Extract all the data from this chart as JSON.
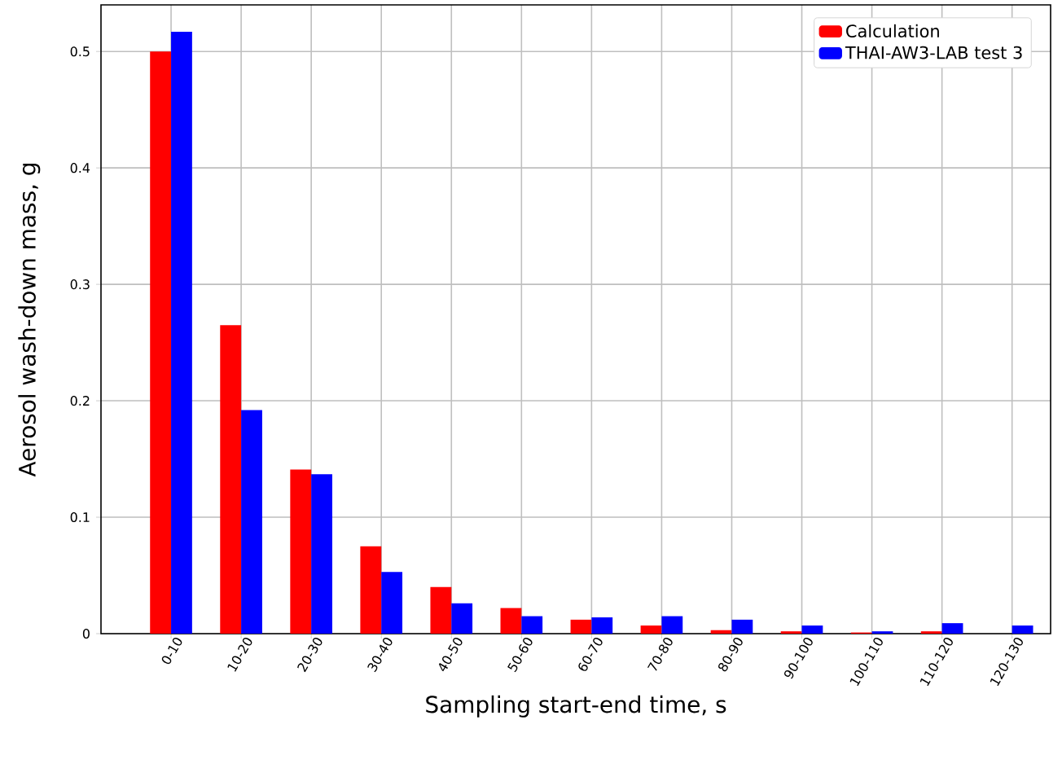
{
  "chart_data": {
    "type": "bar",
    "xlabel": "Sampling start-end time, s",
    "ylabel": "Aerosol wash-down mass, g",
    "categories": [
      "0-10",
      "10-20",
      "20-30",
      "30-40",
      "40-50",
      "50-60",
      "60-70",
      "70-80",
      "80-90",
      "90-100",
      "100-110",
      "110-120",
      "120-130"
    ],
    "series": [
      {
        "name": "Calculation",
        "color": "#ff0000",
        "values": [
          0.5,
          0.265,
          0.141,
          0.075,
          0.04,
          0.022,
          0.012,
          0.007,
          0.003,
          0.002,
          0.001,
          0.002,
          0
        ]
      },
      {
        "name": "THAI-AW3-LAB test 3",
        "color": "#0000ff",
        "values": [
          0.517,
          0.192,
          0.137,
          0.053,
          0.026,
          0.015,
          0.014,
          0.015,
          0.012,
          0.007,
          0.002,
          0.009,
          0.007
        ]
      }
    ],
    "ylim": [
      0,
      0.54
    ],
    "yticks": [
      0,
      0.1,
      0.2,
      0.3,
      0.4,
      0.5
    ],
    "grid": true,
    "legend": "top right"
  }
}
